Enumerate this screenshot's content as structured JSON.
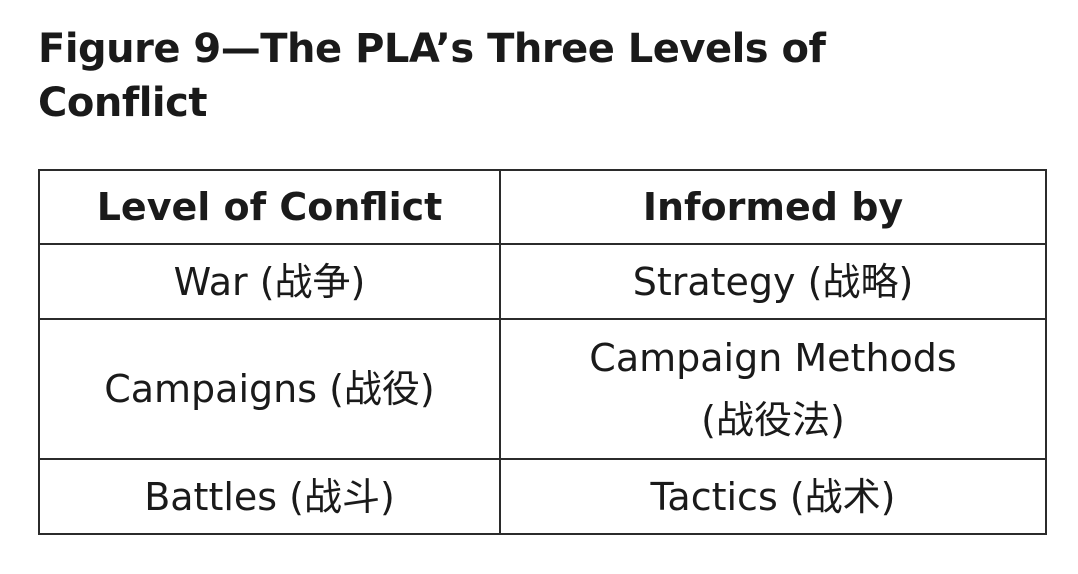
{
  "title": {
    "line1": "Figure 9—The PLA’s Three Levels of",
    "line2": "Conflict"
  },
  "table": {
    "headers": [
      "Level of Conflict",
      "Informed by"
    ],
    "rows": [
      {
        "level": "War (战争)",
        "informed_by": [
          "Strategy (战略)"
        ]
      },
      {
        "level": "Campaigns (战役)",
        "informed_by": [
          "Campaign Methods",
          "(战役法)"
        ]
      },
      {
        "level": "Battles (战斗)",
        "informed_by": [
          "Tactics (战术)"
        ]
      }
    ]
  }
}
